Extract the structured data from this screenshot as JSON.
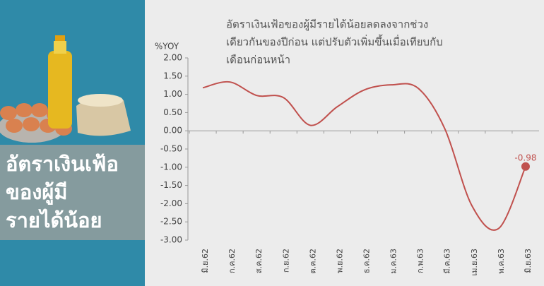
{
  "panel_text": [
    "อัตราเงินเฟ้อ",
    "ของผู้มี",
    "รายได้น้อย"
  ],
  "chart_data": {
    "type": "line",
    "title": [
      "อัตราเงินเฟ้อของผู้มีรายได้น้อยลดลงจากช่วง",
      "เดียวกันของปีก่อน แต่ปรับตัวเพิ่มขึ้นเมื่อเทียบกับ",
      "เดือนก่อนหน้า"
    ],
    "y_label": "%YOY",
    "categories": [
      "มิ.ย.62",
      "ก.ค.62",
      "ส.ค.62",
      "ก.ย.62",
      "ต.ค.62",
      "พ.ย.62",
      "ธ.ค.62",
      "ม.ค.63",
      "ก.พ.63",
      "มี.ค.63",
      "เม.ย.63",
      "พ.ค.63",
      "มิ.ย.63"
    ],
    "series": [
      {
        "name": "อัตราเงินเฟ้อของผู้มีรายได้น้อย",
        "color": "#c0504d",
        "values": [
          1.18,
          1.34,
          0.97,
          0.91,
          0.15,
          0.66,
          1.12,
          1.26,
          1.17,
          0.05,
          -2.05,
          -2.68,
          -0.98
        ],
        "value_labels": [
          null,
          null,
          null,
          null,
          null,
          null,
          null,
          null,
          null,
          null,
          null,
          null,
          "-0.98"
        ]
      }
    ],
    "ylim": [
      -3,
      2
    ],
    "yticks": [
      {
        "value": 2,
        "label": "2.00"
      },
      {
        "value": 1.5,
        "label": "1.50"
      },
      {
        "value": 1,
        "label": "1.00"
      },
      {
        "value": 0.5,
        "label": "0.50"
      },
      {
        "value": 0,
        "label": "0.00"
      },
      {
        "value": -0.5,
        "label": "-0.50"
      },
      {
        "value": -1,
        "label": "-1.00"
      },
      {
        "value": -1.5,
        "label": "-1.50"
      },
      {
        "value": -2,
        "label": "-2.00"
      },
      {
        "value": -2.5,
        "label": "-2.50"
      },
      {
        "value": -3,
        "label": "-3.00"
      }
    ]
  }
}
